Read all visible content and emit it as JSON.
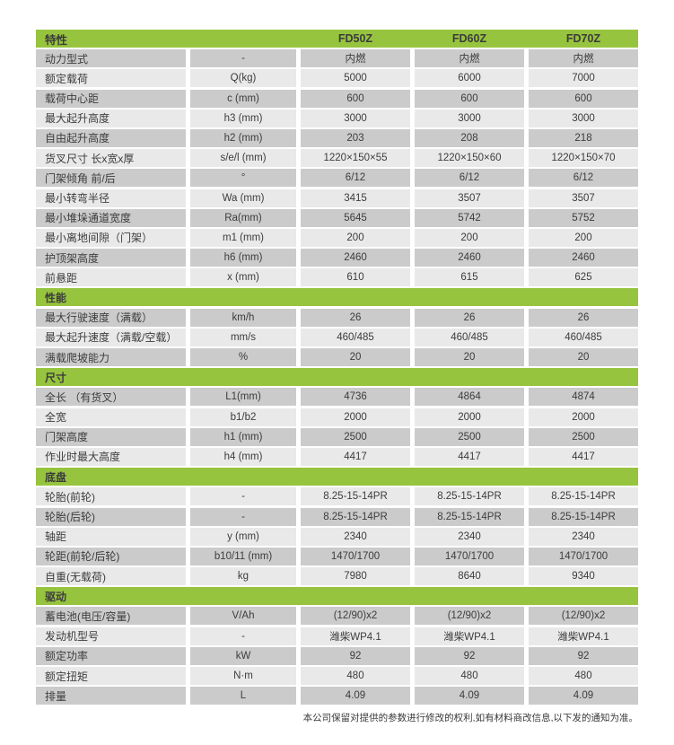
{
  "colors": {
    "accent_green": "#97c43e",
    "row_dark": "#cbcbcb",
    "row_light": "#e9e9e9",
    "text": "#3c3c3c"
  },
  "table": {
    "header": {
      "feature_label": "特性",
      "models": [
        "FD50Z",
        "FD60Z",
        "FD70Z"
      ]
    },
    "sections": [
      {
        "title": "",
        "rows": [
          {
            "label": "动力型式",
            "unit": "-",
            "values": [
              "内燃",
              "内燃",
              "内燃"
            ]
          },
          {
            "label": "额定载荷",
            "unit": "Q(kg)",
            "values": [
              "5000",
              "6000",
              "7000"
            ]
          },
          {
            "label": "载荷中心距",
            "unit": "c (mm)",
            "values": [
              "600",
              "600",
              "600"
            ]
          },
          {
            "label": "最大起升高度",
            "unit": "h3 (mm)",
            "values": [
              "3000",
              "3000",
              "3000"
            ]
          },
          {
            "label": "自由起升高度",
            "unit": "h2 (mm)",
            "values": [
              "203",
              "208",
              "218"
            ]
          },
          {
            "label": "货叉尺寸 长x宽x厚",
            "unit": "s/e/l (mm)",
            "values": [
              "1220×150×55",
              "1220×150×60",
              "1220×150×70"
            ]
          },
          {
            "label": "门架倾角 前/后",
            "unit": "°",
            "values": [
              "6/12",
              "6/12",
              "6/12"
            ]
          },
          {
            "label": "最小转弯半径",
            "unit": "Wa (mm)",
            "values": [
              "3415",
              "3507",
              "3507"
            ]
          },
          {
            "label": "最小堆垛通道宽度",
            "unit": "Ra(mm)",
            "values": [
              "5645",
              "5742",
              "5752"
            ]
          },
          {
            "label": "最小离地间隙（门架）",
            "unit": "m1 (mm)",
            "values": [
              "200",
              "200",
              "200"
            ]
          },
          {
            "label": "护顶架高度",
            "unit": "h6 (mm)",
            "values": [
              "2460",
              "2460",
              "2460"
            ]
          },
          {
            "label": "前悬距",
            "unit": "x (mm)",
            "values": [
              "610",
              "615",
              "625"
            ]
          }
        ]
      },
      {
        "title": "性能",
        "rows": [
          {
            "label": "最大行驶速度（满载）",
            "unit": "km/h",
            "values": [
              "26",
              "26",
              "26"
            ]
          },
          {
            "label": "最大起升速度（满载/空载）",
            "unit": "mm/s",
            "values": [
              "460/485",
              "460/485",
              "460/485"
            ]
          },
          {
            "label": "满载爬坡能力",
            "unit": "%",
            "values": [
              "20",
              "20",
              "20"
            ]
          }
        ]
      },
      {
        "title": "尺寸",
        "rows": [
          {
            "label": "全长 （有货叉）",
            "unit": "L1(mm)",
            "values": [
              "4736",
              "4864",
              "4874"
            ]
          },
          {
            "label": "全宽",
            "unit": "b1/b2",
            "values": [
              "2000",
              "2000",
              "2000"
            ]
          },
          {
            "label": "门架高度",
            "unit": "h1 (mm)",
            "values": [
              "2500",
              "2500",
              "2500"
            ]
          },
          {
            "label": "作业时最大高度",
            "unit": "h4 (mm)",
            "values": [
              "4417",
              "4417",
              "4417"
            ]
          }
        ]
      },
      {
        "title": "底盘",
        "start_light": true,
        "rows": [
          {
            "label": "轮胎(前轮)",
            "unit": "-",
            "values": [
              "8.25-15-14PR",
              "8.25-15-14PR",
              "8.25-15-14PR"
            ]
          },
          {
            "label": "轮胎(后轮)",
            "unit": "-",
            "values": [
              "8.25-15-14PR",
              "8.25-15-14PR",
              "8.25-15-14PR"
            ]
          },
          {
            "label": "轴距",
            "unit": "y (mm)",
            "values": [
              "2340",
              "2340",
              "2340"
            ]
          },
          {
            "label": "轮距(前轮/后轮)",
            "unit": "b10/11 (mm)",
            "values": [
              "1470/1700",
              "1470/1700",
              "1470/1700"
            ]
          },
          {
            "label": "自重(无载荷)",
            "unit": "kg",
            "values": [
              "7980",
              "8640",
              "9340"
            ]
          }
        ]
      },
      {
        "title": "驱动",
        "rows": [
          {
            "label": "蓄电池(电压/容量)",
            "unit": "V/Ah",
            "values": [
              "(12/90)x2",
              "(12/90)x2",
              "(12/90)x2"
            ]
          },
          {
            "label": "发动机型号",
            "unit": "-",
            "values": [
              "潍柴WP4.1",
              "潍柴WP4.1",
              "潍柴WP4.1"
            ]
          },
          {
            "label": "额定功率",
            "unit": "kW",
            "values": [
              "92",
              "92",
              "92"
            ]
          },
          {
            "label": "额定扭矩",
            "unit": "N·m",
            "values": [
              "480",
              "480",
              "480"
            ]
          },
          {
            "label": "排量",
            "unit": "L",
            "values": [
              "4.09",
              "4.09",
              "4.09"
            ]
          }
        ]
      }
    ]
  },
  "footer": {
    "note": "本公司保留对提供的参数进行修改的权利,如有材料商改信息,以下发的通知为准。"
  }
}
